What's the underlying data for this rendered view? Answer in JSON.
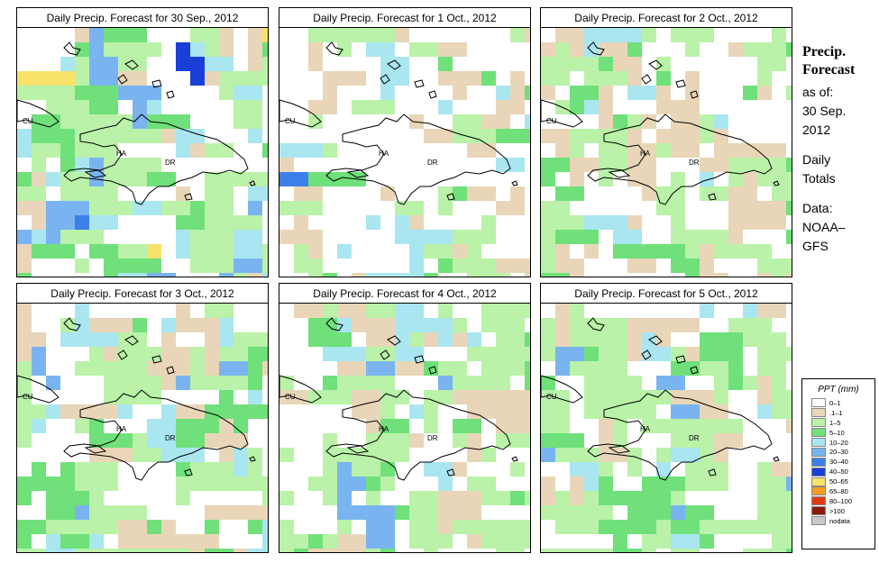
{
  "panels": [
    {
      "title": "Daily Precip. Forecast for  30 Sep., 2012",
      "seed": 11,
      "profile": "wet"
    },
    {
      "title": "Daily Precip. Forecast for  1 Oct., 2012",
      "seed": 23,
      "profile": "dry"
    },
    {
      "title": "Daily Precip. Forecast for  2 Oct., 2012",
      "seed": 37,
      "profile": "tan"
    },
    {
      "title": "Daily Precip. Forecast for  3 Oct., 2012",
      "seed": 41,
      "profile": "mixed"
    },
    {
      "title": "Daily Precip. Forecast for  4 Oct., 2012",
      "seed": 53,
      "profile": "mixed"
    },
    {
      "title": "Daily Precip. Forecast for  5 Oct., 2012",
      "seed": 67,
      "profile": "mixed"
    }
  ],
  "map_labels": {
    "cu": "CU",
    "ha": "HA",
    "dr": "DR"
  },
  "sidebar": {
    "title_line1": "Precip.",
    "title_line2": "Forecast",
    "asof": "as of:",
    "date_line1": "30 Sep.",
    "date_line2": "2012",
    "daily1": "Daily",
    "daily2": "Totals",
    "data1": "Data:",
    "data2": "NOAA–",
    "data3": "GFS"
  },
  "legend": {
    "title": "PPT (mm)",
    "classes": [
      {
        "label": "0–1",
        "color": "#ffffff"
      },
      {
        "label": ".1–1",
        "color": "#e9d6b8"
      },
      {
        "label": "1–5",
        "color": "#b9f2a8"
      },
      {
        "label": "5–10",
        "color": "#6fe07a"
      },
      {
        "label": "10–20",
        "color": "#a9e6f0"
      },
      {
        "label": "20–30",
        "color": "#79b4f0"
      },
      {
        "label": "30–40",
        "color": "#3d7fe8"
      },
      {
        "label": "40–50",
        "color": "#1a3fd8"
      },
      {
        "label": "50–65",
        "color": "#f7e26a"
      },
      {
        "label": "65–80",
        "color": "#f59a22"
      },
      {
        "label": "80–100",
        "color": "#e03a12"
      },
      {
        "label": ">100",
        "color": "#8a1a0a"
      },
      {
        "label": "nodata",
        "color": "#c8c8c8"
      }
    ]
  }
}
